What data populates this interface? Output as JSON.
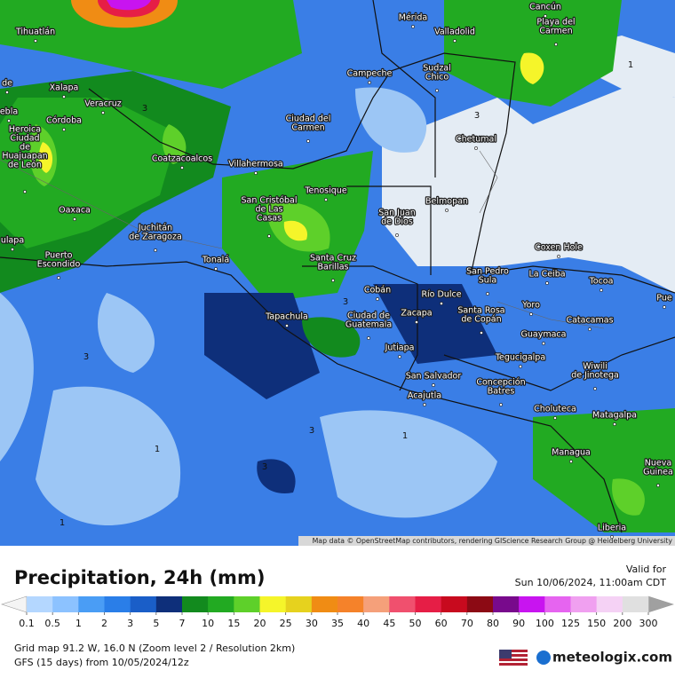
{
  "map": {
    "cities": [
      [
        "Tihuatlán"
      ],
      [
        "Mérida"
      ],
      [
        "Cancún"
      ],
      [
        "Valladolid"
      ],
      [
        "Playa del",
        "Carmen"
      ],
      [
        "de"
      ],
      [
        "Xalapa"
      ],
      [
        "Veracruz"
      ],
      [
        "ebla"
      ],
      [
        "Córdoba"
      ],
      [
        "Campeche"
      ],
      [
        "Sudzal",
        "Chico"
      ],
      [
        "Ciudad del",
        "Carmen"
      ],
      [
        "Chetumal"
      ],
      [
        "Heroica",
        "Ciudad",
        "de",
        "Huajuapan",
        "de León"
      ],
      [
        "Coatzacoalcos"
      ],
      [
        "Villahermosa"
      ],
      [
        "Tenosique"
      ],
      [
        "Belmopan"
      ],
      [
        "San Cristóbal",
        "de Las",
        "Casas"
      ],
      [
        "San Juan",
        "de Dios"
      ],
      [
        "Oaxaca"
      ],
      [
        "Juchitán",
        "de Zaragoza"
      ],
      [
        "Coxen Hole"
      ],
      [
        "ulapa"
      ],
      [
        "Puerto",
        "Escondido"
      ],
      [
        "Tonalá"
      ],
      [
        "Santa Cruz",
        "Barillas"
      ],
      [
        "San Pedro",
        "Sula"
      ],
      [
        "La Ceiba"
      ],
      [
        "Tocoa"
      ],
      [
        "Cobán"
      ],
      [
        "Río Dulce"
      ],
      [
        "Pue"
      ],
      [
        "Yoro"
      ],
      [
        "Tapachula"
      ],
      [
        "Ciudad de",
        "Guatemala"
      ],
      [
        "Zacapa"
      ],
      [
        "Santa Rosa",
        "de Copán"
      ],
      [
        "Catacamas"
      ],
      [
        "Guaymaca"
      ],
      [
        "Jutiapa"
      ],
      [
        "Tegucigalpa"
      ],
      [
        "Wiwili",
        "de Jinotega"
      ],
      [
        "San Salvador"
      ],
      [
        "Concepción",
        "Batres"
      ],
      [
        "Acajutla"
      ],
      [
        "Choluteca"
      ],
      [
        "Matagalpa"
      ],
      [
        "Managua"
      ],
      [
        "Nueva",
        "Guinea"
      ],
      [
        "Liberia"
      ]
    ],
    "contour_labels": [
      3,
      3,
      3,
      3,
      3,
      3,
      1,
      1,
      1,
      1
    ],
    "attribution": "Map data © OpenStreetMap contributors, rendering GIScience Research Group @ Heidelberg University"
  },
  "legend": {
    "title": "Precipitation, 24h (mm)",
    "valid_label": "Valid for",
    "valid_time": "Sun 10/06/2024, 11:00am CDT",
    "ticks": [
      0.1,
      0.5,
      1,
      2,
      3,
      5,
      7,
      10,
      15,
      20,
      25,
      30,
      35,
      40,
      45,
      50,
      60,
      70,
      80,
      90,
      100,
      125,
      150,
      200,
      300
    ],
    "colors": [
      "#b4d7ff",
      "#8cc2ff",
      "#4a9df5",
      "#2a7ee8",
      "#1a5ec8",
      "#0e2f7a",
      "#128a1e",
      "#22aa22",
      "#5ed02a",
      "#f5f52a",
      "#e6d21e",
      "#f08c14",
      "#f5822a",
      "#f5a07a",
      "#f0506e",
      "#e61e46",
      "#c80a1e",
      "#8c0a14",
      "#780a8c",
      "#c814f0",
      "#e664f0",
      "#f0a0f0",
      "#f5d2f5",
      "#e0e0e0"
    ]
  },
  "footer": {
    "grid": "Grid map 91.2 W, 16.0 N (Zoom level 2 / Resolution 2km)",
    "model": "GFS (15 days) from  10/05/2024/12z",
    "brand": "meteologix.com"
  }
}
